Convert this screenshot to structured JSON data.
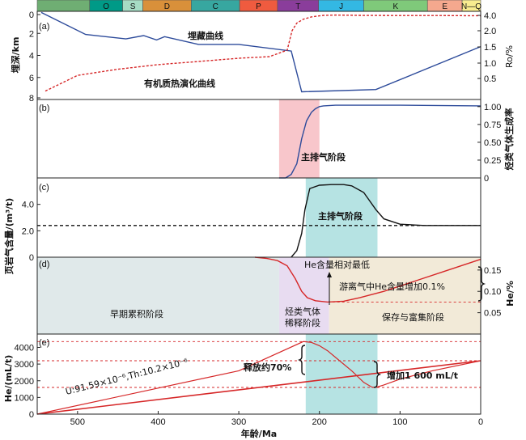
{
  "chart_data": {
    "type": "line",
    "x_axis": {
      "label": "年龄/Ma",
      "range": [
        550,
        0
      ],
      "ticks": [
        500,
        400,
        300,
        200,
        100,
        0
      ]
    },
    "periods": [
      {
        "label": "",
        "start": 550,
        "end": 485,
        "color": "#6fae73"
      },
      {
        "label": "O",
        "start": 485,
        "end": 444,
        "color": "#009a87"
      },
      {
        "label": "S",
        "start": 444,
        "end": 419,
        "color": "#a6dcc4"
      },
      {
        "label": "D",
        "start": 419,
        "end": 359,
        "color": "#d9903a"
      },
      {
        "label": "C",
        "start": 359,
        "end": 299,
        "color": "#37a7a0"
      },
      {
        "label": "P",
        "start": 299,
        "end": 252,
        "color": "#ef5b3f"
      },
      {
        "label": "T",
        "start": 252,
        "end": 201,
        "color": "#8a3d9b"
      },
      {
        "label": "J",
        "start": 201,
        "end": 145,
        "color": "#33b8e3"
      },
      {
        "label": "K",
        "start": 145,
        "end": 66,
        "color": "#7fc97a"
      },
      {
        "label": "E",
        "start": 66,
        "end": 23,
        "color": "#f5a88e"
      },
      {
        "label": "N—Q",
        "start": 23,
        "end": 0,
        "color": "#f8ec8f"
      }
    ],
    "panels": [
      {
        "id": "a",
        "label": "(a)",
        "left_axis": {
          "label": "埋深/km",
          "range": [
            0,
            8
          ],
          "inverted": true,
          "ticks": [
            0,
            2,
            4,
            6,
            8
          ]
        },
        "right_axis": {
          "label": "Ro/%",
          "ticks": [
            0.5,
            1.0,
            1.5,
            2.0,
            4.0
          ]
        },
        "series": [
          {
            "name": "埋藏曲线",
            "color": "#2c4a9a",
            "style": "solid",
            "x": [
              545,
              490,
              440,
              418,
              402,
              392,
              350,
              300,
              235,
              222,
              130,
              0
            ],
            "y": [
              0.1,
              2.1,
              2.5,
              2.2,
              2.6,
              2.3,
              3.0,
              3.0,
              3.6,
              7.3,
              7.1,
              3.2
            ]
          },
          {
            "name": "有机质热演化曲线",
            "color": "#d62728",
            "style": "dashed",
            "x": [
              540,
              500,
              450,
              400,
              350,
              300,
              262,
              240,
              234,
              228,
              220,
              210,
              195,
              180,
              150,
              100,
              50,
              0
            ],
            "y": [
              0.2,
              0.6,
              0.8,
              0.95,
              1.05,
              1.15,
              1.2,
              1.4,
              2.0,
              3.0,
              3.5,
              3.8,
              4.0,
              4.05,
              4.0,
              3.98,
              3.98,
              3.95
            ]
          }
        ]
      },
      {
        "id": "b",
        "label": "(b)",
        "right_axis": {
          "label": "烃类气体生成率",
          "range": [
            0,
            1.1
          ],
          "ticks": [
            0,
            0.25,
            0.5,
            0.75,
            1.0
          ]
        },
        "band": {
          "x0": 250,
          "x1": 200,
          "color": "#f8c6cb",
          "label": "主排气阶段"
        },
        "series": [
          {
            "name": "",
            "color": "#2c4a9a",
            "x": [
              250,
              242,
              235,
              228,
              222,
              216,
              210,
              205,
              200,
              195,
              180,
              150,
              100,
              0
            ],
            "y": [
              0,
              0.0,
              0.05,
              0.2,
              0.55,
              0.8,
              0.92,
              0.97,
              1.0,
              1.01,
              1.02,
              1.02,
              1.02,
              1.01
            ]
          }
        ]
      },
      {
        "id": "c",
        "label": "(c)",
        "left_axis": {
          "label": "页岩气含量/(m³/t)",
          "range": [
            0,
            6
          ],
          "ticks": [
            0,
            2.0,
            4.0
          ]
        },
        "band": {
          "x0": 217,
          "x1": 128,
          "color": "#b6e3e3",
          "label": "主排气阶段"
        },
        "reference": {
          "y": 2.4,
          "style": "dashed",
          "color": "#111"
        },
        "series": [
          {
            "name": "",
            "color": "#111",
            "x": [
              235,
              228,
              222,
              218,
              212,
              200,
              185,
              170,
              160,
              145,
              130,
              120,
              100,
              70,
              40,
              0
            ],
            "y": [
              0,
              0.5,
              1.8,
              3.6,
              5.2,
              5.45,
              5.5,
              5.5,
              5.4,
              4.9,
              3.6,
              2.9,
              2.5,
              2.4,
              2.4,
              2.4
            ]
          }
        ]
      },
      {
        "id": "d",
        "label": "(d)",
        "right_axis": {
          "label": "He/%",
          "range": [
            0.0,
            0.18
          ],
          "ticks": [
            0.05,
            0.1,
            0.15
          ]
        },
        "stages": [
          {
            "label": "早期累积阶段",
            "x0": 550,
            "x1": 250,
            "color": "#e0e9ea"
          },
          {
            "label": "烃类气体稀释阶段",
            "x0": 250,
            "x1": 188,
            "color": "#e8dcf1"
          },
          {
            "label": "保存与富集阶段",
            "x0": 188,
            "x1": 0,
            "color": "#f2ead8"
          }
        ],
        "reference": {
          "y": 0.075,
          "style": "dashed",
          "color": "#d62728"
        },
        "annotations": [
          "He含量相对最低",
          "游离气中He含量增加0.1%"
        ],
        "series": [
          {
            "name": "",
            "color": "#d62728",
            "x": [
              280,
              265,
              252,
              240,
              230,
              222,
              215,
              205,
              190,
              170,
              150,
              120,
              80,
              40,
              0
            ],
            "y": [
              0.18,
              0.177,
              0.172,
              0.16,
              0.13,
              0.1,
              0.085,
              0.078,
              0.075,
              0.077,
              0.085,
              0.1,
              0.125,
              0.15,
              0.175
            ]
          }
        ]
      },
      {
        "id": "e",
        "label": "(e)",
        "left_axis": {
          "label": "He/(mL/t)",
          "range": [
            0,
            4800
          ],
          "ticks": [
            0,
            1000,
            2000,
            3000,
            4000
          ]
        },
        "band": {
          "x0": 217,
          "x1": 128,
          "color": "#b6e3e3"
        },
        "references": [
          {
            "y": 4350,
            "style": "dashed",
            "color": "#d62728"
          },
          {
            "y": 3200,
            "style": "dashed",
            "color": "#d62728"
          },
          {
            "y": 1600,
            "style": "dashed",
            "color": "#d62728"
          }
        ],
        "annotations": [
          "U:91.59×10⁻⁶,Th:10.2×10⁻⁶",
          "释放约70%",
          "增加1 600 mL/t"
        ],
        "series": [
          {
            "name": "",
            "color": "#d62728",
            "x": [
              550,
              300,
              220,
              210,
              200,
              190,
              175,
              160,
              145,
              135,
              130,
              120,
              100,
              60,
              0
            ],
            "y": [
              0,
              2600,
              4350,
              4300,
              4100,
              3800,
              3200,
              2600,
              1900,
              1620,
              1600,
              1750,
              2100,
              2600,
              3200
            ]
          },
          {
            "name": "",
            "color": "#d62728",
            "x": [
              550,
              0
            ],
            "y": [
              0,
              3200
            ]
          }
        ]
      }
    ],
    "text": {
      "burial_label": "埋藏曲线",
      "ro_label": "有机质热演化曲线",
      "ro_axis": "Ro/%",
      "depth_axis": "埋深/km",
      "gen_axis": "烃类气体生成率",
      "gas_axis": "页岩气含量/(m³/t)",
      "he_axis": "He/%",
      "he_ml_axis": "He/(mL/t)",
      "x_label": "年龄/Ma",
      "main_b": "主排气阶段",
      "main_c": "主排气阶段",
      "early": "早期累积阶段",
      "dilute1": "烃类气体",
      "dilute2": "稀释阶段",
      "preserve": "保存与富集阶段",
      "he_low": "He含量相对最低",
      "he_inc": "游离气中He含量增加0.1%",
      "u_th": "U:91.59×10⁻⁶,Th:10.2×10⁻⁶",
      "release": "释放约70%",
      "increase": "增加1 600 mL/t"
    }
  }
}
